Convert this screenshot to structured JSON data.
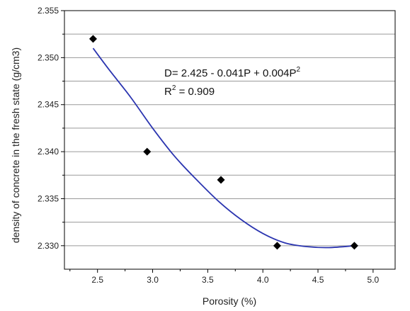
{
  "chart_data": {
    "type": "scatter",
    "title": "",
    "xlabel": "Porosity (%)",
    "ylabel": "density of concrete in the fresh state (g/cm3)",
    "xlim": [
      2.2,
      5.2
    ],
    "ylim": [
      2.3275,
      2.355
    ],
    "xticks": [
      2.5,
      3.0,
      3.5,
      4.0,
      4.5,
      5.0
    ],
    "xtick_labels": [
      "2.5",
      "3.0",
      "3.5",
      "4.0",
      "4.5",
      "5.0"
    ],
    "yticks": [
      2.33,
      2.335,
      2.34,
      2.345,
      2.35,
      2.355
    ],
    "ytick_labels": [
      "2.330",
      "2.335",
      "2.340",
      "2.345",
      "2.350",
      "2.355"
    ],
    "grid": true,
    "points": [
      {
        "x": 2.46,
        "y": 2.352
      },
      {
        "x": 2.95,
        "y": 2.34
      },
      {
        "x": 3.62,
        "y": 2.337
      },
      {
        "x": 4.13,
        "y": 2.33
      },
      {
        "x": 4.83,
        "y": 2.33
      }
    ],
    "fit_curve": [
      {
        "x": 2.46,
        "y": 2.351
      },
      {
        "x": 2.6,
        "y": 2.3488
      },
      {
        "x": 2.8,
        "y": 2.3458
      },
      {
        "x": 3.0,
        "y": 2.3425
      },
      {
        "x": 3.2,
        "y": 2.3395
      },
      {
        "x": 3.4,
        "y": 2.337
      },
      {
        "x": 3.6,
        "y": 2.3347
      },
      {
        "x": 3.8,
        "y": 2.3328
      },
      {
        "x": 4.0,
        "y": 2.3313
      },
      {
        "x": 4.2,
        "y": 2.3303
      },
      {
        "x": 4.4,
        "y": 2.3299
      },
      {
        "x": 4.6,
        "y": 2.3298
      },
      {
        "x": 4.83,
        "y": 2.33
      }
    ],
    "annotation": {
      "eq_prefix": "D= 2.425 - 0.041P + 0.004P",
      "eq_sup": "2",
      "r2_prefix": "R",
      "r2_sup": "2",
      "r2_suffix": " = 0.909"
    },
    "colors": {
      "fit": "#2b35b0",
      "marker": "#000000",
      "grid": "#9a9a9a"
    }
  }
}
